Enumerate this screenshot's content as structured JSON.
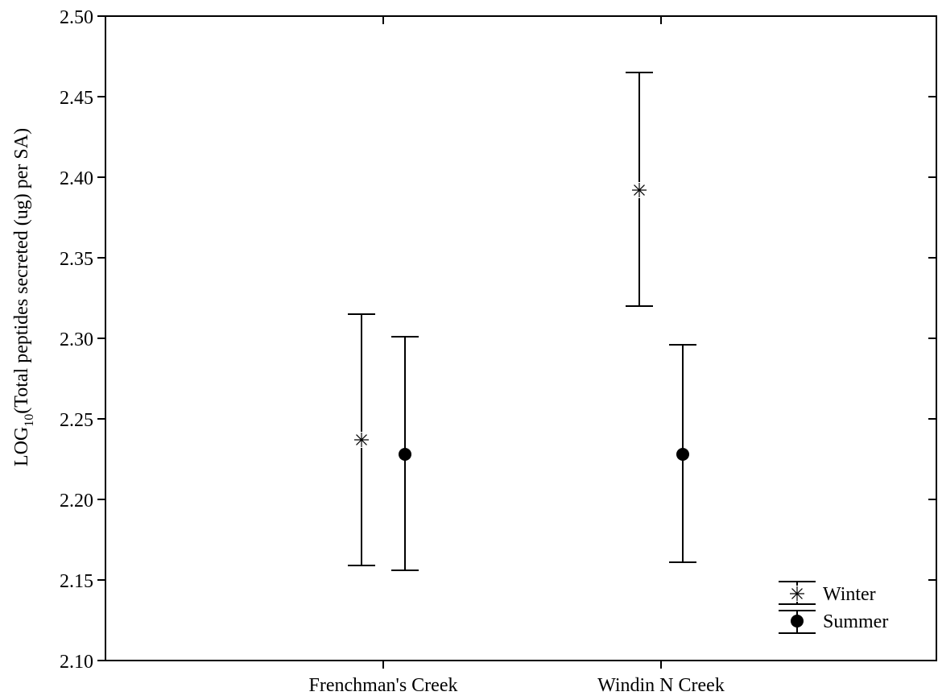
{
  "chart_data": {
    "type": "scatter",
    "subtype": "means-with-error-bars",
    "title": "",
    "xlabel": "",
    "ylabel": {
      "prefix": "LOG",
      "subscript": "10",
      "rest": "(Total peptides secreted (ug) per SA)"
    },
    "ylim": [
      2.1,
      2.5
    ],
    "yticks": [
      "2.10",
      "2.15",
      "2.20",
      "2.25",
      "2.30",
      "2.35",
      "2.40",
      "2.45",
      "2.50"
    ],
    "categories": [
      "Frenchman's Creek",
      "Windin N Creek"
    ],
    "grid": false,
    "legend_position": "bottom-right",
    "series": [
      {
        "name": "Winter",
        "marker": "asterisk",
        "values": [
          2.237,
          2.392
        ],
        "lower": [
          2.159,
          2.32
        ],
        "upper": [
          2.315,
          2.465
        ]
      },
      {
        "name": "Summer",
        "marker": "filled-circle",
        "values": [
          2.228,
          2.228
        ],
        "lower": [
          2.156,
          2.161
        ],
        "upper": [
          2.301,
          2.296
        ]
      }
    ]
  }
}
